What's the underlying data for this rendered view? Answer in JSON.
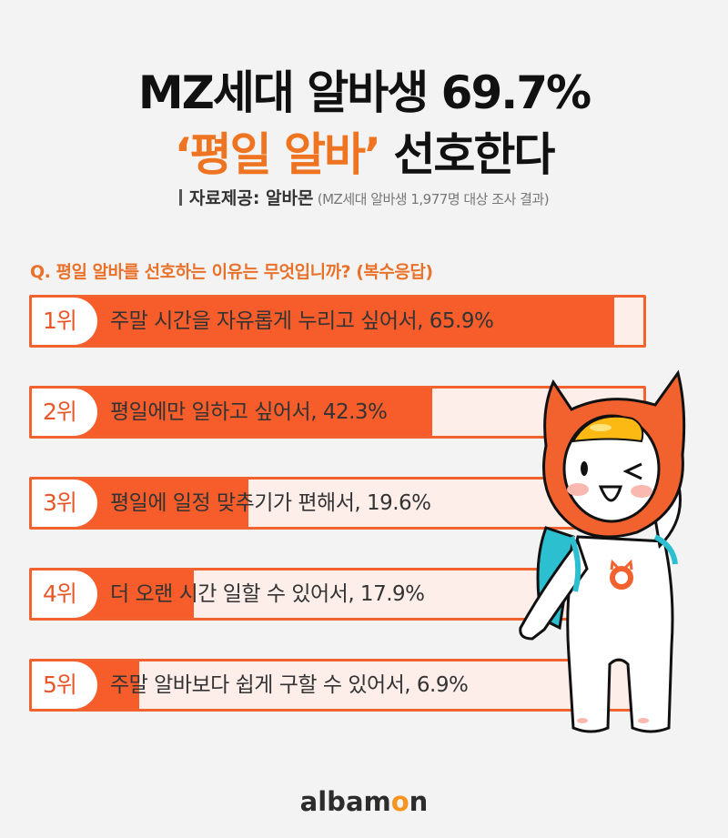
{
  "header": {
    "title_line1": "MZ세대 알바생 69.7%",
    "title_line2_accent": "‘평일 알바’",
    "title_line2_rest": " 선호한다",
    "source_main": "자료제공: 알바몬",
    "source_note": " (MZ세대 알바생 1,977명 대상 조사 결과)"
  },
  "question": "Q. 평일 알바를 선호하는 이유는 무엇입니까? (복수응답)",
  "colors": {
    "accent": "#f75d2a",
    "bar_bg": "#fdeeea",
    "title_accent": "#ee7421",
    "logo_accent": "#f7941d"
  },
  "rows": [
    {
      "rank": "1위",
      "label": "주말 시간을 자유롭게 누리고 싶어서, 65.9%",
      "value": 65.9
    },
    {
      "rank": "2위",
      "label": "평일에만 일하고 싶어서, 42.3%",
      "value": 42.3
    },
    {
      "rank": "3위",
      "label": "평일에 일정 맞추기가 편해서, 19.6%",
      "value": 19.6
    },
    {
      "rank": "4위",
      "label": "더 오랜 시간 일할 수 있어서, 17.9%",
      "value": 17.9
    },
    {
      "rank": "5위",
      "label": "주말 알바보다 쉽게 구할 수 있어서, 6.9%",
      "value": 6.9
    }
  ],
  "logo": {
    "pre": "albam",
    "o": "o",
    "post": "n"
  },
  "chart_data": {
    "type": "bar",
    "orientation": "horizontal",
    "title": "MZ세대 알바생 69.7% ‘평일 알바’ 선호한다",
    "subtitle": "Q. 평일 알바를 선호하는 이유는 무엇입니까? (복수응답)",
    "source": "자료제공: 알바몬 (MZ세대 알바생 1,977명 대상 조사 결과)",
    "categories": [
      "주말 시간을 자유롭게 누리고 싶어서",
      "평일에만 일하고 싶어서",
      "평일에 일정 맞추기가 편해서",
      "더 오랜 시간 일할 수 있어서",
      "주말 알바보다 쉽게 구할 수 있어서"
    ],
    "ranks": [
      "1위",
      "2위",
      "3위",
      "4위",
      "5위"
    ],
    "values": [
      65.9,
      42.3,
      19.6,
      17.9,
      6.9
    ],
    "unit": "%",
    "xlabel": "",
    "ylabel": "",
    "grid": false,
    "legend": null
  }
}
